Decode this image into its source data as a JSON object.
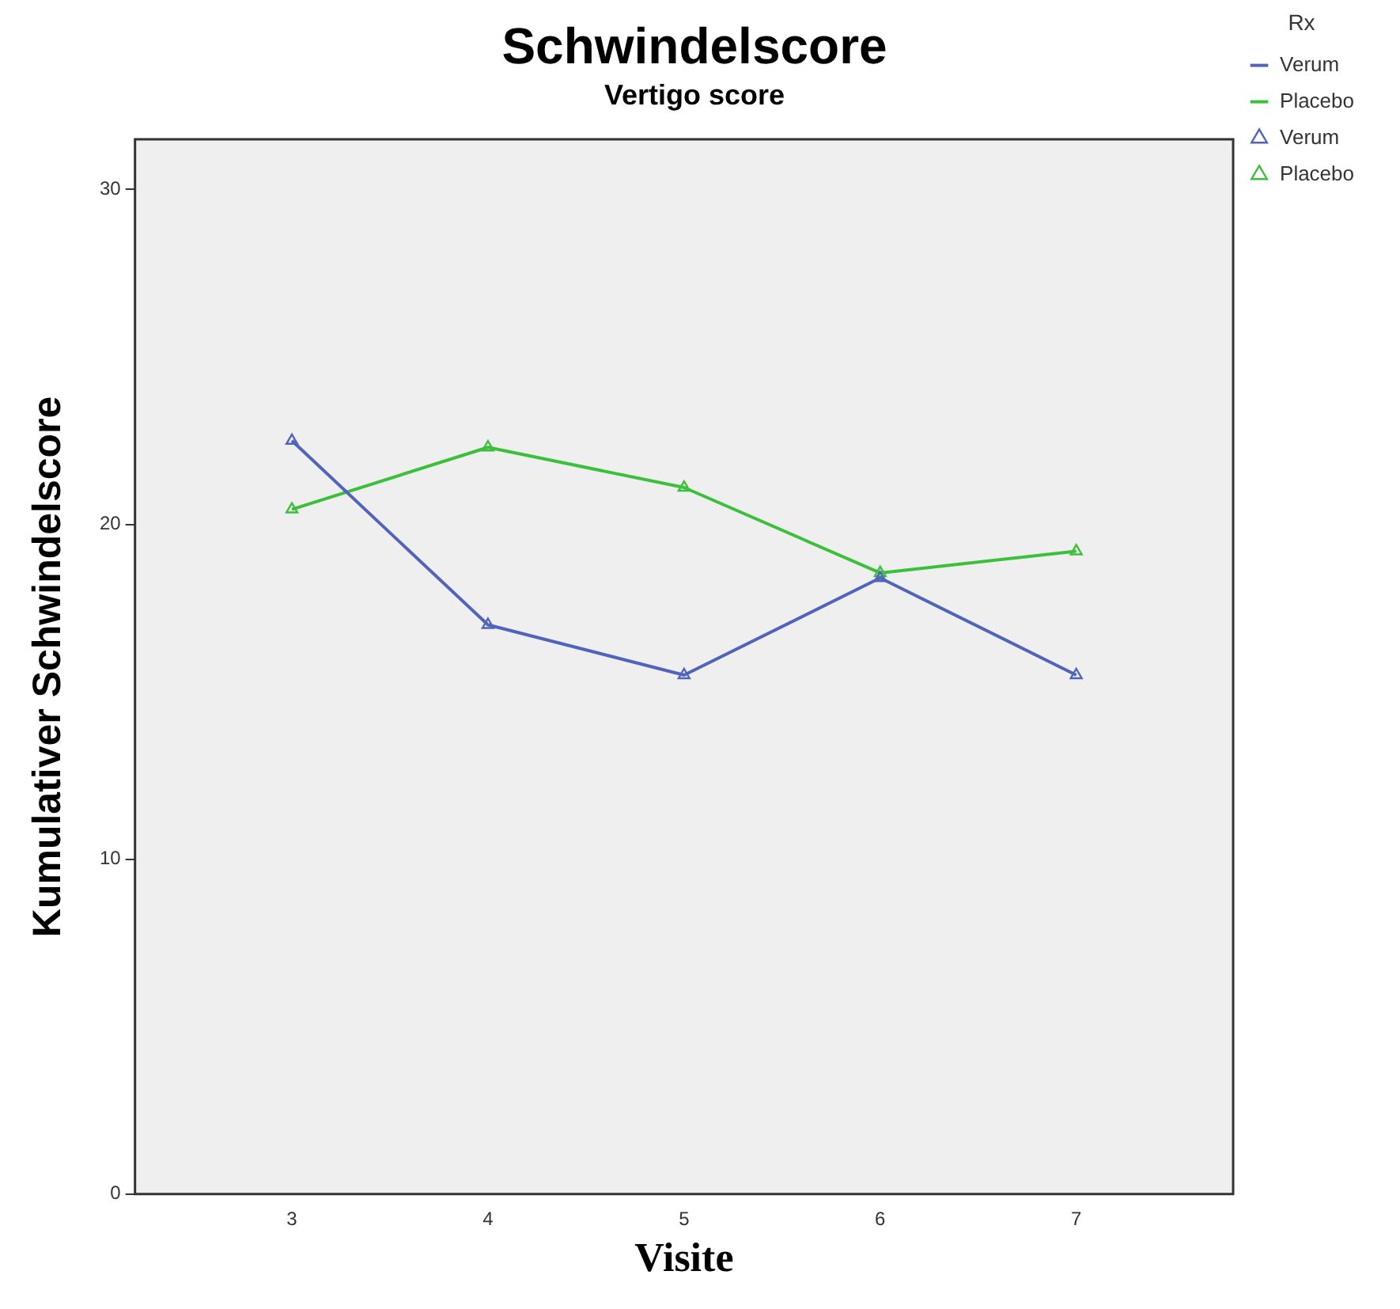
{
  "chart_data": {
    "type": "line",
    "title": "Schwindelscore",
    "subtitle": "Vertigo score",
    "xlabel": "Visite",
    "ylabel": "Kumulativer Schwindelscore",
    "legend_title": "Rx",
    "x": [
      3,
      4,
      5,
      6,
      7
    ],
    "series": [
      {
        "name": "Verum",
        "color": "#5064be",
        "values": [
          22.5,
          17.0,
          15.5,
          18.4,
          15.5
        ]
      },
      {
        "name": "Placebo",
        "color": "#3cc03c",
        "values": [
          20.45,
          22.3,
          21.1,
          18.55,
          19.2
        ]
      }
    ],
    "xlim": [
      2.2,
      7.8
    ],
    "xticks": [
      3,
      4,
      5,
      6,
      7
    ],
    "ylim": [
      0,
      31.5
    ],
    "yticks": [
      0,
      10,
      20,
      30
    ],
    "grid": false,
    "legend": "top right",
    "marker": "triangle",
    "line_style": "solid"
  }
}
